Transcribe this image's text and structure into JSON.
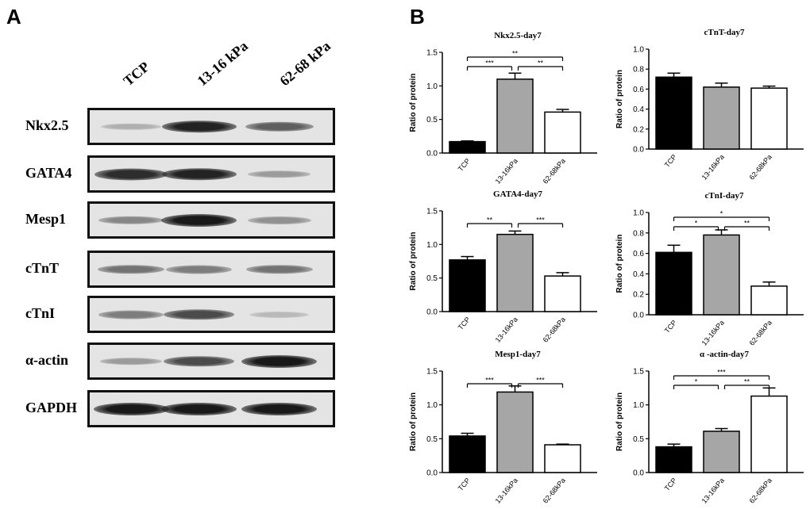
{
  "panel_a": {
    "letter": "A",
    "lanes": [
      "TCP",
      "13-16 kPa",
      "62-68 kPa"
    ],
    "blots": [
      {
        "label": "Nkx2.5",
        "intensity": [
          0.25,
          0.95,
          0.65
        ]
      },
      {
        "label": "GATA4",
        "intensity": [
          0.9,
          0.95,
          0.35
        ]
      },
      {
        "label": "Mesp1",
        "intensity": [
          0.45,
          1.0,
          0.4
        ]
      },
      {
        "label": "cTnT",
        "intensity": [
          0.55,
          0.5,
          0.55
        ]
      },
      {
        "label": "cTnI",
        "intensity": [
          0.5,
          0.75,
          0.2
        ]
      },
      {
        "label": "α-actin",
        "intensity": [
          0.35,
          0.75,
          1.0
        ]
      },
      {
        "label": "GAPDH",
        "intensity": [
          1.0,
          1.0,
          1.0
        ]
      }
    ]
  },
  "panel_b": {
    "letter": "B"
  },
  "chart_data": [
    {
      "type": "bar",
      "title": "Nkx2.5-day7",
      "ylabel": "Ratio of protein",
      "categories": [
        "TCP",
        "13-16kPa",
        "62-68kPa"
      ],
      "values": [
        0.17,
        1.1,
        0.61
      ],
      "errors": [
        0.01,
        0.09,
        0.04
      ],
      "colors": [
        "#000000",
        "#a6a6a6",
        "#ffffff"
      ],
      "ylim": [
        0,
        1.5
      ],
      "yticks": [
        "0.0",
        "0.5",
        "1.0",
        "1.5"
      ],
      "significance": [
        {
          "from": 0,
          "to": 2,
          "label": "**"
        },
        {
          "from": 0,
          "to": 1,
          "label": "***"
        },
        {
          "from": 1,
          "to": 2,
          "label": "**"
        }
      ]
    },
    {
      "type": "bar",
      "title": "cTnT-day7",
      "ylabel": "Ratio of protein",
      "categories": [
        "TCP",
        "13-16kPa",
        "62-68kPa"
      ],
      "values": [
        0.72,
        0.62,
        0.61
      ],
      "errors": [
        0.04,
        0.04,
        0.02
      ],
      "colors": [
        "#000000",
        "#a6a6a6",
        "#ffffff"
      ],
      "ylim": [
        0,
        1.0
      ],
      "yticks": [
        "0.0",
        "0.2",
        "0.4",
        "0.6",
        "0.8",
        "1.0"
      ],
      "significance": []
    },
    {
      "type": "bar",
      "title": "GATA4-day7",
      "ylabel": "Ratio of protein",
      "categories": [
        "TCP",
        "13-16kPa",
        "62-68kPa"
      ],
      "values": [
        0.77,
        1.15,
        0.53
      ],
      "errors": [
        0.05,
        0.05,
        0.05
      ],
      "colors": [
        "#000000",
        "#a6a6a6",
        "#ffffff"
      ],
      "ylim": [
        0,
        1.5
      ],
      "yticks": [
        "0.0",
        "0.5",
        "1.0",
        "1.5"
      ],
      "significance": [
        {
          "from": 0,
          "to": 1,
          "label": "**"
        },
        {
          "from": 1,
          "to": 2,
          "label": "***"
        }
      ]
    },
    {
      "type": "bar",
      "title": "cTnI-day7",
      "ylabel": "Ratio of protein",
      "categories": [
        "TCP",
        "13-16kPa",
        "62-68kPa"
      ],
      "values": [
        0.61,
        0.78,
        0.28
      ],
      "errors": [
        0.07,
        0.05,
        0.04
      ],
      "colors": [
        "#000000",
        "#a6a6a6",
        "#ffffff"
      ],
      "ylim": [
        0,
        1.0
      ],
      "yticks": [
        "0.0",
        "0.2",
        "0.4",
        "0.6",
        "0.8",
        "1.0"
      ],
      "significance": [
        {
          "from": 0,
          "to": 2,
          "label": "*"
        },
        {
          "from": 0,
          "to": 1,
          "label": "*"
        },
        {
          "from": 1,
          "to": 2,
          "label": "**"
        }
      ]
    },
    {
      "type": "bar",
      "title": "Mesp1-day7",
      "ylabel": "Ratio of protein",
      "categories": [
        "TCP",
        "13-16kPa",
        "62-68kPa"
      ],
      "values": [
        0.54,
        1.19,
        0.41
      ],
      "errors": [
        0.04,
        0.09,
        0.01
      ],
      "colors": [
        "#000000",
        "#a6a6a6",
        "#ffffff"
      ],
      "ylim": [
        0,
        1.5
      ],
      "yticks": [
        "0.0",
        "0.5",
        "1.0",
        "1.5"
      ],
      "significance": [
        {
          "from": 0,
          "to": 1,
          "label": "***"
        },
        {
          "from": 1,
          "to": 2,
          "label": "***"
        }
      ]
    },
    {
      "type": "bar",
      "title": "α -actin-day7",
      "ylabel": "Ratio of protein",
      "categories": [
        "TCP",
        "13-16kPa",
        "62-68kPa"
      ],
      "values": [
        0.38,
        0.61,
        1.13
      ],
      "errors": [
        0.04,
        0.04,
        0.12
      ],
      "colors": [
        "#000000",
        "#a6a6a6",
        "#ffffff"
      ],
      "ylim": [
        0,
        1.5
      ],
      "yticks": [
        "0.0",
        "0.5",
        "1.0",
        "1.5"
      ],
      "significance": [
        {
          "from": 0,
          "to": 2,
          "label": "***"
        },
        {
          "from": 0,
          "to": 1,
          "label": "*"
        },
        {
          "from": 1,
          "to": 2,
          "label": "**"
        }
      ]
    }
  ]
}
